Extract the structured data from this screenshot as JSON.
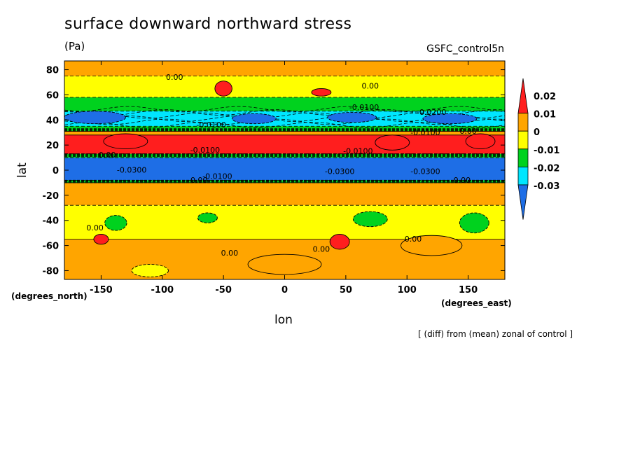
{
  "chart_data": {
    "type": "heatmap",
    "title": "surface downward northward stress",
    "units": "(Pa)",
    "run_label": "GSFC_control5n",
    "xlabel": "lon",
    "ylabel": "lat",
    "x_unit_label": "(degrees_east)",
    "y_unit_label": "(degrees_north)",
    "note": "[ (diff) from (mean) zonal of control ]",
    "xlim": [
      -180,
      180
    ],
    "ylim": [
      -87,
      87
    ],
    "x_ticks": [
      -150,
      -100,
      -50,
      0,
      50,
      100,
      150
    ],
    "y_ticks": [
      -80,
      -60,
      -40,
      -20,
      0,
      20,
      40,
      60,
      80
    ],
    "colorbar": {
      "levels": [
        -0.03,
        -0.02,
        -0.01,
        0,
        0.01,
        0.02
      ],
      "tick_labels": [
        "0.02",
        "0.01",
        "0",
        "-0.01",
        "-0.02",
        "-0.03"
      ],
      "colors": [
        "#1e6ee6",
        "#00e6ff",
        "#00d21e",
        "#ffff00",
        "#ffa500",
        "#ff1e1e"
      ]
    },
    "bands": [
      {
        "lat": [
          75,
          87
        ],
        "value": 0
      },
      {
        "lat": [
          58,
          75
        ],
        "value": -0.005
      },
      {
        "lat": [
          47,
          58
        ],
        "value": -0.012
      },
      {
        "lat": [
          35,
          47
        ],
        "value": -0.025
      },
      {
        "lat": [
          31,
          35
        ],
        "value": -0.015
      },
      {
        "lat": [
          28,
          31
        ],
        "value": 0.005
      },
      {
        "lat": [
          13,
          28
        ],
        "value": 0.015
      },
      {
        "lat": [
          10,
          13
        ],
        "value": -0.015
      },
      {
        "lat": [
          -8,
          10
        ],
        "value": -0.035
      },
      {
        "lat": [
          -10,
          -8
        ],
        "value": -0.015
      },
      {
        "lat": [
          -28,
          -10
        ],
        "value": 0.005
      },
      {
        "lat": [
          -55,
          -28
        ],
        "value": -0.005
      },
      {
        "lat": [
          -87,
          -55
        ],
        "value": 0.005
      }
    ],
    "blobs": [
      {
        "lon": -130,
        "lat": 23,
        "rlon": 18,
        "rlat": 6,
        "value": 0.025
      },
      {
        "lon": 88,
        "lat": 22,
        "rlon": 14,
        "rlat": 6,
        "value": 0.025
      },
      {
        "lon": 160,
        "lat": 23,
        "rlon": 12,
        "rlat": 6,
        "value": 0.025
      },
      {
        "lon": -155,
        "lat": 42,
        "rlon": 25,
        "rlat": 5,
        "value": -0.035
      },
      {
        "lon": -25,
        "lat": 41,
        "rlon": 18,
        "rlat": 4,
        "value": -0.035
      },
      {
        "lon": 55,
        "lat": 42,
        "rlon": 20,
        "rlat": 4,
        "value": -0.035
      },
      {
        "lon": 135,
        "lat": 41,
        "rlon": 22,
        "rlat": 4,
        "value": -0.035
      },
      {
        "lon": -50,
        "lat": 65,
        "rlon": 7,
        "rlat": 6,
        "value": 0.015
      },
      {
        "lon": 30,
        "lat": 62,
        "rlon": 8,
        "rlat": 3,
        "value": 0.015
      },
      {
        "lon": -150,
        "lat": -55,
        "rlon": 6,
        "rlat": 4,
        "value": 0.015
      },
      {
        "lon": 45,
        "lat": -57,
        "rlon": 8,
        "rlat": 6,
        "value": 0.015
      },
      {
        "lon": -138,
        "lat": -42,
        "rlon": 9,
        "rlat": 6,
        "value": -0.015
      },
      {
        "lon": -63,
        "lat": -38,
        "rlon": 8,
        "rlat": 4,
        "value": -0.015
      },
      {
        "lon": 70,
        "lat": -39,
        "rlon": 14,
        "rlat": 6,
        "value": -0.015
      },
      {
        "lon": 155,
        "lat": -42,
        "rlon": 12,
        "rlat": 8,
        "value": -0.015
      },
      {
        "lon": 0,
        "lat": -75,
        "rlon": 30,
        "rlat": 8,
        "value": 0.005
      },
      {
        "lon": 120,
        "lat": -60,
        "rlon": 25,
        "rlat": 8,
        "value": 0.005
      },
      {
        "lon": -110,
        "lat": -80,
        "rlon": 15,
        "rlat": 5,
        "value": -0.005
      }
    ],
    "contour_labels": [
      {
        "lon": -90,
        "lat": 72,
        "text": "0.00"
      },
      {
        "lon": 70,
        "lat": 65,
        "text": "0.00"
      },
      {
        "lon": 65,
        "lat": 48,
        "text": "-0.0100"
      },
      {
        "lon": 120,
        "lat": 44,
        "text": "-0.0200"
      },
      {
        "lon": -60,
        "lat": 34,
        "text": "-0.0100"
      },
      {
        "lon": 115,
        "lat": 28,
        "text": "-0.0100"
      },
      {
        "lon": 150,
        "lat": 29,
        "text": "0.00"
      },
      {
        "lon": -65,
        "lat": 14,
        "text": "-0.0100"
      },
      {
        "lon": 60,
        "lat": 13,
        "text": "-0.0100"
      },
      {
        "lon": -145,
        "lat": 10,
        "text": "0.00"
      },
      {
        "lon": -125,
        "lat": -2,
        "text": "-0.0300"
      },
      {
        "lon": 45,
        "lat": -3,
        "text": "-0.0300"
      },
      {
        "lon": 115,
        "lat": -3,
        "text": "-0.0300"
      },
      {
        "lon": -55,
        "lat": -7,
        "text": "-0.0100"
      },
      {
        "lon": -70,
        "lat": -10,
        "text": "0.00"
      },
      {
        "lon": 145,
        "lat": -10,
        "text": "0.00"
      },
      {
        "lon": -155,
        "lat": -48,
        "text": "0.00"
      },
      {
        "lon": -45,
        "lat": -68,
        "text": "0.00"
      },
      {
        "lon": 30,
        "lat": -65,
        "text": "0.00"
      },
      {
        "lon": 105,
        "lat": -57,
        "text": "0.00"
      }
    ]
  }
}
